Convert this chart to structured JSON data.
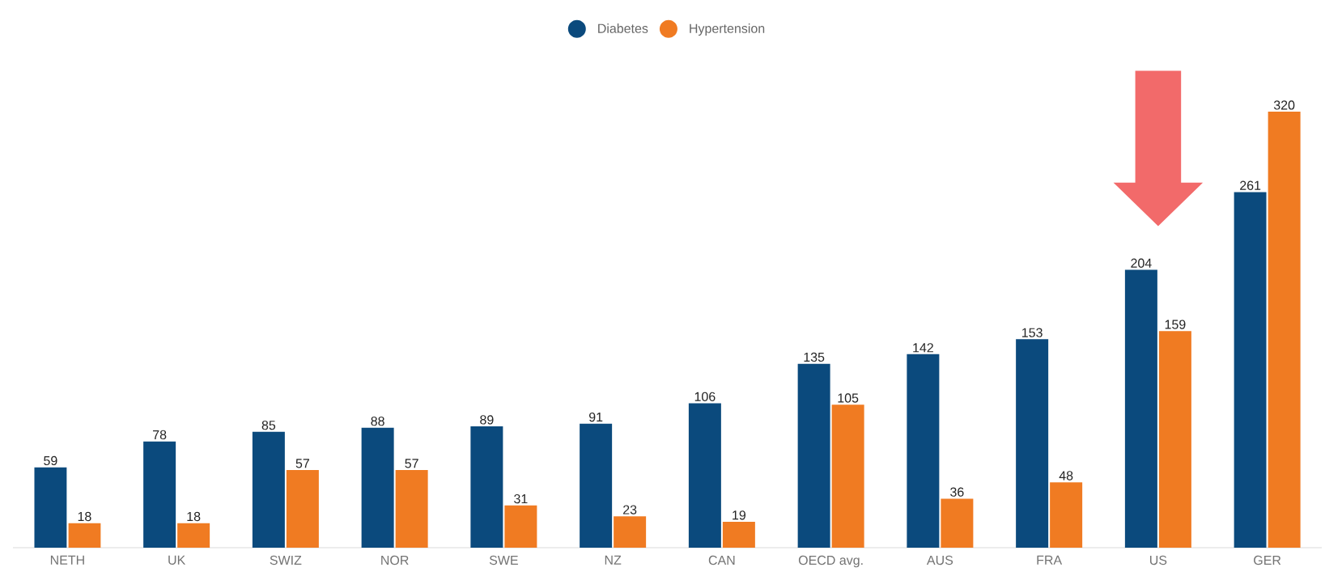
{
  "chart_data": {
    "type": "bar",
    "categories": [
      "NETH",
      "UK",
      "SWIZ",
      "NOR",
      "SWE",
      "NZ",
      "CAN",
      "OECD avg.",
      "AUS",
      "FRA",
      "US",
      "GER"
    ],
    "series": [
      {
        "name": "Diabetes",
        "color": "#0b4a7d",
        "values": [
          59,
          78,
          85,
          88,
          89,
          91,
          106,
          135,
          142,
          153,
          204,
          261
        ]
      },
      {
        "name": "Hypertension",
        "color": "#f07b22",
        "values": [
          18,
          18,
          57,
          57,
          31,
          23,
          19,
          105,
          36,
          48,
          159,
          320
        ]
      }
    ],
    "data_labels": true,
    "legend": "top"
  }
}
